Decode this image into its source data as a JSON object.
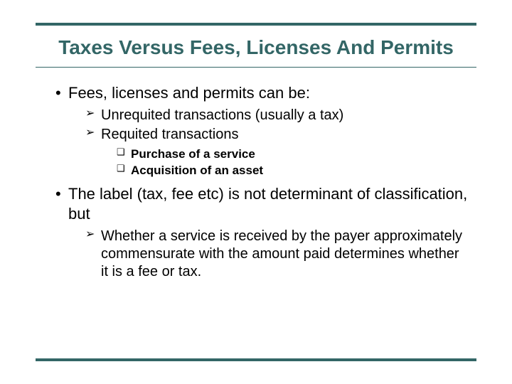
{
  "colors": {
    "accent": "#336666",
    "text": "#000000",
    "background": "#ffffff"
  },
  "typography": {
    "title_fontsize": 28,
    "lvl1_fontsize": 22,
    "lvl2_fontsize": 20,
    "lvl3_fontsize": 17,
    "font_family": "Arial"
  },
  "title": "Taxes Versus Fees, Licenses And Permits",
  "bullets": {
    "item1": "Fees, licenses and permits can be:",
    "item1_sub1": "Unrequited transactions (usually a tax)",
    "item1_sub2": "Requited transactions",
    "item1_sub2_sub1": "Purchase of a service",
    "item1_sub2_sub2": "Acquisition of an asset",
    "item2": "The label (tax, fee etc) is not determinant of classification, but",
    "item2_sub1": "Whether a service is received by the payer approximately commensurate with the amount paid determines whether it is a fee or tax."
  }
}
